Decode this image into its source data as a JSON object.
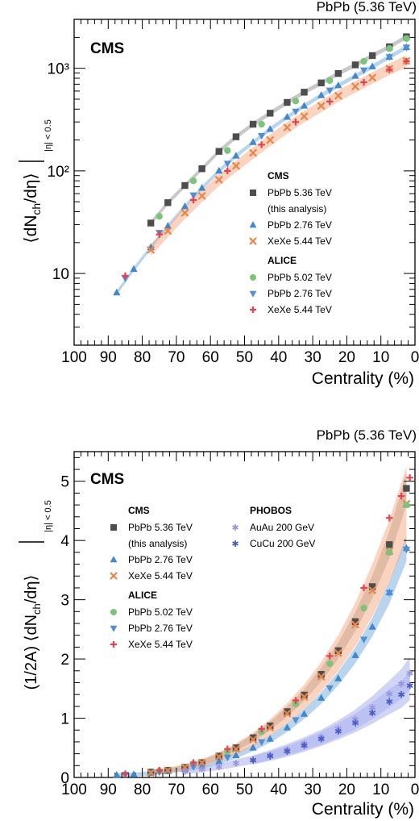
{
  "colors": {
    "cms_pbpb536": "#4d4d4d",
    "cms_pbpb276": "#3f88cc",
    "cms_xexe544": "#e8854a",
    "alice_pbpb502": "#7cc47a",
    "alice_pbpb276": "#4f8fd6",
    "alice_xexe544": "#e8414d",
    "phobos_auau200": "#9b96e0",
    "phobos_cucu200": "#4a5fc4",
    "band_pbpb536": "#9a9a9a",
    "band_pbpb276": "#7fb2e0",
    "band_xexe544": "#f5b18a",
    "band_phobos": "#aab0ec"
  },
  "chart_data": [
    {
      "type": "scatter",
      "title": "PbPb (5.36 TeV)",
      "experiment_label": "CMS",
      "xlabel": "Centrality (%)",
      "ylabel_main": "⟨dN",
      "ylabel_sub": "ch",
      "ylabel_mid": "/dη⟩",
      "ylabel_restrict": "|η| < 0.5",
      "x_reversed": true,
      "xlim": [
        100,
        0
      ],
      "ylim": [
        2,
        3000
      ],
      "yscale": "log",
      "x_ticks": [
        "100",
        "90",
        "80",
        "70",
        "60",
        "50",
        "40",
        "30",
        "20",
        "10",
        "0"
      ],
      "y_ticks": [
        {
          "value": 10,
          "label": "10"
        },
        {
          "value": 100,
          "label": "10²"
        },
        {
          "value": 1000,
          "label": "10³"
        }
      ],
      "legend_groups": [
        {
          "heading": "CMS",
          "entries": [
            {
              "label": "PbPb 5.36 TeV",
              "sub": "(this analysis)",
              "marker": "square",
              "color_key": "cms_pbpb536"
            },
            {
              "label": "PbPb 2.76 TeV",
              "marker": "triangle-up",
              "color_key": "cms_pbpb276"
            },
            {
              "label": "XeXe 5.44 TeV",
              "marker": "cross",
              "color_key": "cms_xexe544"
            }
          ]
        },
        {
          "heading": "ALICE",
          "entries": [
            {
              "label": "PbPb 5.02 TeV",
              "marker": "circle",
              "color_key": "alice_pbpb502"
            },
            {
              "label": "PbPb 2.76 TeV",
              "marker": "triangle-down",
              "color_key": "alice_pbpb276"
            },
            {
              "label": "XeXe 5.44 TeV",
              "marker": "plus",
              "color_key": "alice_xexe544"
            }
          ]
        }
      ],
      "series": [
        {
          "name": "CMS PbPb 5.36 TeV",
          "marker": "square",
          "color_key": "cms_pbpb536",
          "band_key": "band_pbpb536",
          "x": [
            2.5,
            7.5,
            12.5,
            17.5,
            22.5,
            27.5,
            32.5,
            37.5,
            42.5,
            47.5,
            52.5,
            57.5,
            62.5,
            67.5,
            72.5,
            77.5
          ],
          "y": [
            2030,
            1620,
            1330,
            1080,
            890,
            720,
            585,
            465,
            365,
            285,
            215,
            155,
            105,
            72,
            49,
            31
          ]
        },
        {
          "name": "CMS PbPb 2.76 TeV",
          "marker": "triangle-up",
          "color_key": "cms_pbpb276",
          "band_key": "band_pbpb276",
          "x": [
            2.5,
            7.5,
            12.5,
            17.5,
            22.5,
            27.5,
            32.5,
            37.5,
            42.5,
            47.5,
            52.5,
            57.5,
            62.5,
            67.5,
            72.5,
            77.5,
            82.5,
            87.5
          ],
          "y": [
            1600,
            1290,
            1040,
            840,
            680,
            545,
            430,
            335,
            255,
            190,
            140,
            100,
            68,
            45,
            29,
            18,
            11,
            6.5
          ]
        },
        {
          "name": "CMS XeXe 5.44 TeV",
          "marker": "cross",
          "color_key": "cms_xexe544",
          "band_key": "band_xexe544",
          "x": [
            2.5,
            7.5,
            12.5,
            17.5,
            22.5,
            27.5,
            32.5,
            37.5,
            42.5,
            47.5,
            52.5,
            57.5,
            62.5,
            67.5,
            72.5,
            77.5
          ],
          "y": [
            1180,
            990,
            810,
            665,
            540,
            430,
            340,
            265,
            200,
            150,
            112,
            82,
            57,
            39,
            26,
            17
          ]
        },
        {
          "name": "ALICE PbPb 5.02 TeV",
          "marker": "circle",
          "color_key": "alice_pbpb502",
          "x": [
            2.5,
            7.5,
            15,
            25,
            35,
            45,
            55,
            65,
            75
          ],
          "y": [
            1950,
            1560,
            1170,
            760,
            480,
            285,
            158,
            80,
            36
          ]
        },
        {
          "name": "ALICE PbPb 2.76 TeV",
          "marker": "triangle-down",
          "color_key": "alice_pbpb276",
          "x": [
            2.5,
            7.5,
            15,
            25,
            35,
            45,
            55,
            65,
            75,
            85
          ],
          "y": [
            1600,
            1290,
            960,
            610,
            380,
            220,
            118,
            58,
            25,
            9
          ]
        },
        {
          "name": "ALICE XeXe 5.44 TeV",
          "marker": "plus",
          "color_key": "alice_xexe544",
          "x": [
            2.5,
            7.5,
            15,
            25,
            35,
            45,
            55,
            65,
            75,
            85
          ],
          "y": [
            1170,
            970,
            730,
            475,
            300,
            180,
            100,
            52,
            24,
            9.5
          ]
        }
      ]
    },
    {
      "type": "scatter",
      "title": "PbPb (5.36 TeV)",
      "experiment_label": "CMS",
      "xlabel": "Centrality (%)",
      "ylabel_prefix": "(1/2A) ⟨dN",
      "ylabel_sub": "ch",
      "ylabel_mid": "/dη⟩",
      "ylabel_restrict": "|η| < 0.5",
      "x_reversed": true,
      "xlim": [
        100,
        0
      ],
      "ylim": [
        0,
        5.5
      ],
      "x_ticks": [
        "100",
        "90",
        "80",
        "70",
        "60",
        "50",
        "40",
        "30",
        "20",
        "10",
        "0"
      ],
      "y_ticks": [
        "0",
        "1",
        "2",
        "3",
        "4",
        "5"
      ],
      "legend_groups": [
        {
          "heading": "CMS",
          "entries": [
            {
              "label": "PbPb 5.36 TeV",
              "sub": "(this analysis)",
              "marker": "square",
              "color_key": "cms_pbpb536"
            },
            {
              "label": "PbPb 2.76 TeV",
              "marker": "triangle-up",
              "color_key": "cms_pbpb276"
            },
            {
              "label": "XeXe 5.44 TeV",
              "marker": "cross",
              "color_key": "cms_xexe544"
            }
          ]
        },
        {
          "heading": "ALICE",
          "entries": [
            {
              "label": "PbPb 5.02 TeV",
              "marker": "circle",
              "color_key": "alice_pbpb502"
            },
            {
              "label": "PbPb 2.76 TeV",
              "marker": "triangle-down",
              "color_key": "alice_pbpb276"
            },
            {
              "label": "XeXe 5.44 TeV",
              "marker": "plus",
              "color_key": "alice_xexe544"
            }
          ]
        },
        {
          "heading": "PHOBOS",
          "entries": [
            {
              "label": "AuAu 200 GeV",
              "marker": "star",
              "color_key": "phobos_auau200"
            },
            {
              "label": "CuCu 200 GeV",
              "marker": "star",
              "color_key": "phobos_cucu200"
            }
          ]
        }
      ],
      "series": [
        {
          "name": "CMS PbPb 5.36 TeV",
          "marker": "square",
          "color_key": "cms_pbpb536",
          "band_key": "band_pbpb536",
          "x": [
            2.5,
            7.5,
            12.5,
            17.5,
            22.5,
            27.5,
            32.5,
            37.5,
            42.5,
            47.5,
            52.5,
            57.5,
            62.5,
            67.5,
            72.5,
            77.5
          ],
          "y": [
            4.88,
            3.93,
            3.22,
            2.63,
            2.14,
            1.74,
            1.39,
            1.11,
            0.87,
            0.67,
            0.5,
            0.36,
            0.25,
            0.17,
            0.12,
            0.09
          ]
        },
        {
          "name": "CMS PbPb 2.76 TeV",
          "marker": "triangle-up",
          "color_key": "cms_pbpb276",
          "band_key": "band_pbpb276",
          "x": [
            2.5,
            7.5,
            12.5,
            17.5,
            22.5,
            27.5,
            32.5,
            37.5,
            42.5,
            47.5,
            52.5,
            57.5,
            62.5,
            67.5,
            72.5,
            77.5,
            82.5,
            87.5
          ],
          "y": [
            3.87,
            3.12,
            2.54,
            2.06,
            1.67,
            1.34,
            1.07,
            0.84,
            0.65,
            0.5,
            0.37,
            0.27,
            0.19,
            0.14,
            0.1,
            0.07,
            0.05,
            0.04
          ]
        },
        {
          "name": "CMS XeXe 5.44 TeV",
          "marker": "cross",
          "color_key": "cms_xexe544",
          "band_key": "band_xexe544",
          "x": [
            2.5,
            7.5,
            12.5,
            17.5,
            22.5,
            27.5,
            32.5,
            37.5,
            42.5,
            47.5,
            52.5,
            57.5,
            62.5,
            67.5,
            72.5,
            77.5
          ],
          "y": [
            4.62,
            3.82,
            3.16,
            2.58,
            2.1,
            1.7,
            1.36,
            1.08,
            0.84,
            0.64,
            0.48,
            0.35,
            0.25,
            0.17,
            0.12,
            0.08
          ]
        },
        {
          "name": "ALICE PbPb 5.02 TeV",
          "marker": "circle",
          "color_key": "alice_pbpb502",
          "x": [
            2.5,
            7.5,
            15,
            25,
            35,
            45,
            55,
            65,
            75
          ],
          "y": [
            4.6,
            3.8,
            2.86,
            1.92,
            1.24,
            0.77,
            0.44,
            0.23,
            0.11
          ]
        },
        {
          "name": "ALICE PbPb 2.76 TeV",
          "marker": "triangle-down",
          "color_key": "alice_pbpb276",
          "x": [
            2.5,
            7.5,
            15,
            25,
            35,
            45,
            55,
            65,
            75,
            85
          ],
          "y": [
            3.85,
            3.12,
            2.33,
            1.51,
            0.97,
            0.6,
            0.34,
            0.18,
            0.09,
            0.05
          ]
        },
        {
          "name": "ALICE XeXe 5.44 TeV",
          "marker": "plus",
          "color_key": "alice_xexe544",
          "x": [
            1.5,
            4,
            7.5,
            15,
            25,
            35,
            45,
            55,
            65,
            75,
            85
          ],
          "y": [
            5.06,
            4.75,
            4.38,
            3.2,
            2.05,
            1.3,
            0.82,
            0.48,
            0.25,
            0.12,
            0.06
          ]
        },
        {
          "name": "PHOBOS AuAu 200 GeV",
          "marker": "star",
          "color_key": "phobos_auau200",
          "band_key": "band_phobos",
          "x": [
            1.5,
            4,
            7.5,
            12.5,
            17.5,
            22.5,
            27.5,
            32.5,
            37.5,
            42.5,
            47.5,
            52.5,
            57.5,
            62.5,
            67.5
          ],
          "y": [
            1.76,
            1.58,
            1.41,
            1.18,
            0.98,
            0.82,
            0.68,
            0.57,
            0.47,
            0.38,
            0.3,
            0.24,
            0.18,
            0.14,
            0.1
          ]
        },
        {
          "name": "PHOBOS CuCu 200 GeV",
          "marker": "star",
          "color_key": "phobos_cucu200",
          "band_key": "band_phobos",
          "x": [
            1.5,
            4,
            7.5,
            12.5,
            17.5,
            22.5,
            27.5,
            32.5,
            37.5,
            42.5,
            47.5
          ],
          "y": [
            1.55,
            1.4,
            1.28,
            1.09,
            0.92,
            0.78,
            0.65,
            0.54,
            0.44,
            0.36,
            0.29
          ]
        }
      ]
    }
  ]
}
